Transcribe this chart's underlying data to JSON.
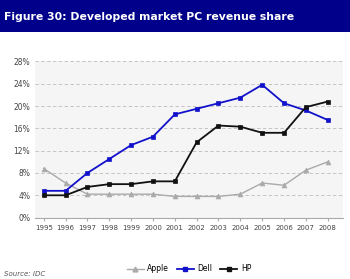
{
  "title": "Figure 30: Developed market PC revenue share",
  "source": "Source: IDC",
  "years": [
    1995,
    1996,
    1997,
    1998,
    1999,
    2000,
    2001,
    2002,
    2003,
    2004,
    2005,
    2006,
    2007,
    2008
  ],
  "apple": [
    0.088,
    0.062,
    0.042,
    0.042,
    0.042,
    0.042,
    0.038,
    0.038,
    0.038,
    0.042,
    0.062,
    0.058,
    0.085,
    0.1
  ],
  "dell": [
    0.048,
    0.048,
    0.08,
    0.105,
    0.13,
    0.145,
    0.185,
    0.195,
    0.205,
    0.215,
    0.238,
    0.205,
    0.192,
    0.175
  ],
  "hp": [
    0.04,
    0.04,
    0.055,
    0.06,
    0.06,
    0.065,
    0.065,
    0.135,
    0.165,
    0.163,
    0.152,
    0.152,
    0.198,
    0.208
  ],
  "apple_color": "#aaaaaa",
  "dell_color": "#1111cc",
  "hp_color": "#111111",
  "title_bg": "#00008B",
  "title_fg": "#ffffff",
  "grid_color": "#bbbbbb",
  "bg_color": "#f5f5f5",
  "ylim": [
    0,
    0.28
  ],
  "yticks": [
    0,
    0.04,
    0.08,
    0.12,
    0.16,
    0.2,
    0.24,
    0.28
  ],
  "ytick_labels": [
    "0%",
    "4%",
    "8%",
    "12%",
    "16%",
    "20%",
    "24%",
    "28%"
  ]
}
